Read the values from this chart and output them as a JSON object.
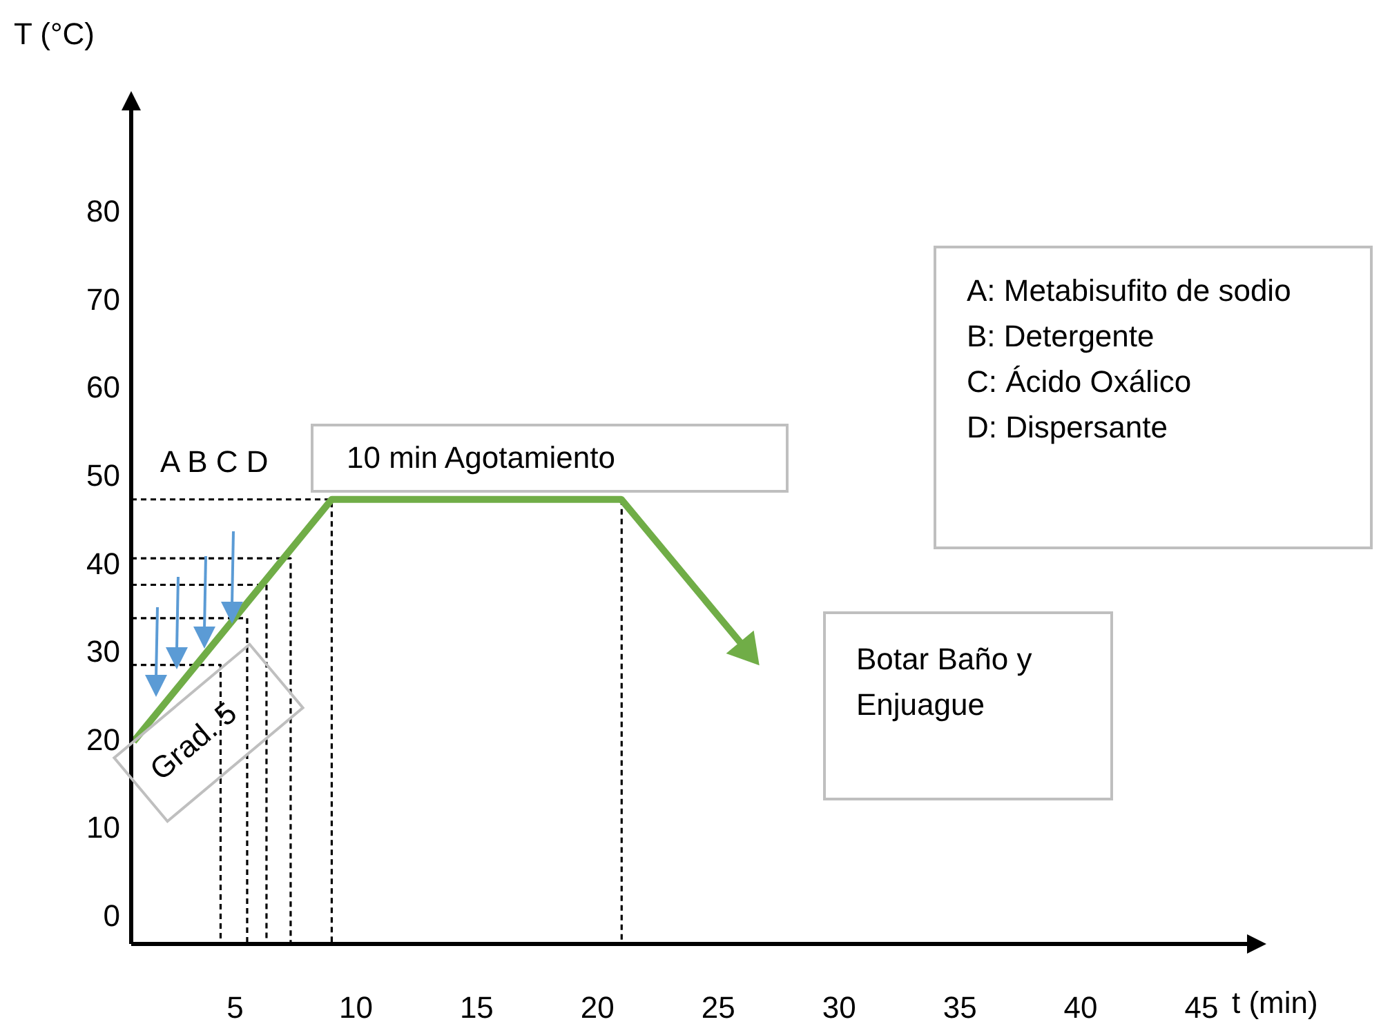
{
  "chart_data": {
    "type": "line",
    "xlabel": "t (min)",
    "ylabel": "T (°C)",
    "xlim": [
      0.7,
      47
    ],
    "ylim": [
      -3,
      92
    ],
    "xticks": [
      5,
      10,
      15,
      20,
      25,
      30,
      35,
      40,
      45
    ],
    "yticks": [
      0,
      10,
      20,
      30,
      40,
      50,
      60,
      70,
      80
    ],
    "grid": false,
    "legend": false,
    "marker": "none",
    "series": [
      {
        "color": "#70ad47",
        "line_style": "solid",
        "x": [
          0.8,
          9.0,
          21.0
        ],
        "values": [
          20,
          47.5,
          47.5
        ]
      },
      {
        "color": "#000000",
        "line_style": "dashed",
        "x": [
          0.7,
          4.4,
          4.4
        ],
        "values": [
          28.7,
          28.7,
          -3
        ]
      },
      {
        "color": "#000000",
        "line_style": "dashed",
        "x": [
          0.7,
          5.5,
          5.5
        ],
        "values": [
          34,
          34,
          -3
        ]
      },
      {
        "color": "#000000",
        "line_style": "dashed",
        "x": [
          0.7,
          6.3,
          6.3
        ],
        "values": [
          37.8,
          37.8,
          -3
        ]
      },
      {
        "color": "#000000",
        "line_style": "dashed",
        "x": [
          0.7,
          7.3,
          7.3
        ],
        "values": [
          40.8,
          40.8,
          -3
        ]
      },
      {
        "color": "#000000",
        "line_style": "dashed",
        "x": [
          0.7,
          9.0,
          9.0
        ],
        "values": [
          47.5,
          47.5,
          -3
        ]
      },
      {
        "color": "#000000",
        "line_style": "dashed",
        "x": [
          21.0,
          21.0
        ],
        "values": [
          47.5,
          -3
        ]
      }
    ],
    "annotations": [
      "A B C D",
      "10 min Agotamiento",
      "A: Metabisufito de sodio",
      "B: Detergente",
      "C: Ácido Oxálico",
      "D: Dispersante",
      "Botar Baño y Enjuague",
      "Grad. 5"
    ]
  }
}
